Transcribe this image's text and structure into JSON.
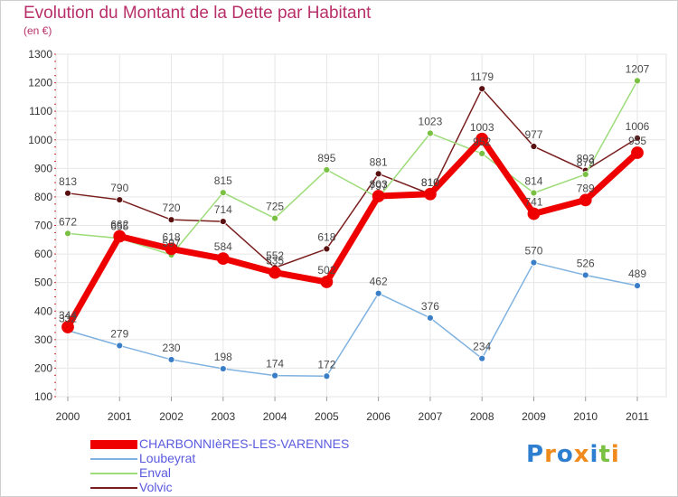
{
  "header": {
    "title": "Evolution du Montant de la Dette par Habitant",
    "subtitle": "(en €)"
  },
  "logo": {
    "text": "Proxiti",
    "letters": [
      {
        "ch": "P",
        "color": "#2f7fd0"
      },
      {
        "ch": "r",
        "color": "#f08a1c"
      },
      {
        "ch": "o",
        "color": "#2f7fd0"
      },
      {
        "ch": "x",
        "color": "#f08a1c"
      },
      {
        "ch": "i",
        "color": "#2f7fd0"
      },
      {
        "ch": "t",
        "color": "#7ac043"
      },
      {
        "ch": "i",
        "color": "#f08a1c"
      }
    ]
  },
  "chart_data": {
    "type": "line",
    "x": [
      "2000",
      "2001",
      "2002",
      "2003",
      "2004",
      "2005",
      "2006",
      "2007",
      "2008",
      "2009",
      "2010",
      "2011"
    ],
    "ylim": [
      100,
      1300
    ],
    "yticks": [
      100,
      200,
      300,
      400,
      500,
      600,
      700,
      800,
      900,
      1000,
      1100,
      1200,
      1300
    ],
    "grid": true,
    "series": [
      {
        "name": "Volvic",
        "color": "#7a1f1f",
        "marker": "#5a1010",
        "width": 1.5,
        "values": [
          813,
          790,
          720,
          714,
          552,
          618,
          881,
          810,
          1179,
          977,
          893,
          1006
        ]
      },
      {
        "name": "Enval",
        "color": "#9edc7a",
        "marker": "#7ac043",
        "width": 1.5,
        "values": [
          672,
          655,
          597,
          815,
          725,
          895,
          797,
          1023,
          952,
          814,
          879,
          1207
        ]
      },
      {
        "name": "Loubeyrat",
        "color": "#7fb2e0",
        "marker": "#3a7ec8",
        "width": 1.5,
        "values": [
          332,
          279,
          230,
          198,
          174,
          172,
          462,
          376,
          234,
          570,
          526,
          489
        ]
      },
      {
        "name": "CHARBONNIèRES-LES-VARENNES",
        "color": "#ee0000",
        "marker": "#ee0000",
        "width": 7,
        "values": [
          344,
          662,
          618,
          584,
          535,
          502,
          803,
          810,
          1003,
          741,
          789,
          955
        ]
      }
    ],
    "legend_order": [
      "CHARBONNIèRES-LES-VARENNES",
      "Loubeyrat",
      "Enval",
      "Volvic"
    ],
    "legend": "bottom-left"
  }
}
